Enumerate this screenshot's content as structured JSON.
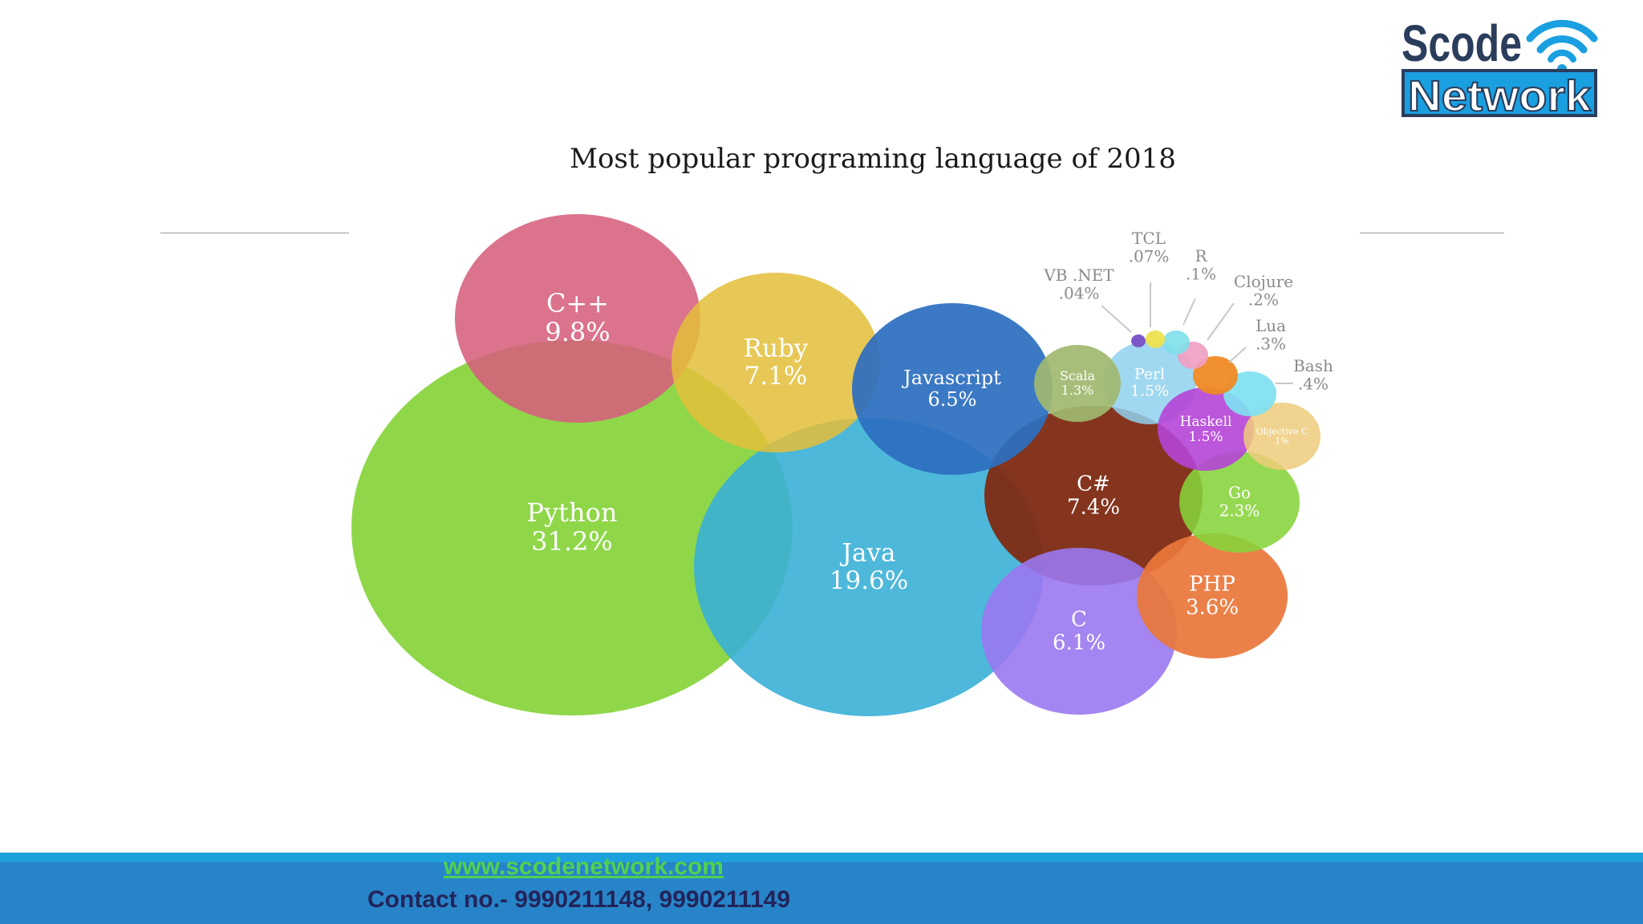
{
  "logo": {
    "line1": "Scode",
    "line2": "Network",
    "icon": "wifi-icon"
  },
  "chart_data": {
    "type": "bubble",
    "title": "Most popular programing language of 2018",
    "units": "%",
    "series": [
      {
        "label": "Python",
        "value": "31.2%",
        "color": "#86d43a"
      },
      {
        "label": "Java",
        "value": "19.6%",
        "color": "#3ab0d6"
      },
      {
        "label": "C++",
        "value": "9.8%",
        "color": "#d6607d"
      },
      {
        "label": "C#",
        "value": "7.4%",
        "color": "#7e2a12"
      },
      {
        "label": "Ruby",
        "value": "7.1%",
        "color": "#e3bf3a"
      },
      {
        "label": "Javascript",
        "value": "6.5%",
        "color": "#2d6fbf"
      },
      {
        "label": "C",
        "value": "6.1%",
        "color": "#9a78ef"
      },
      {
        "label": "PHP",
        "value": "3.6%",
        "color": "#e9773a"
      },
      {
        "label": "Go",
        "value": "2.3%",
        "color": "#86d43a"
      },
      {
        "label": "Perl",
        "value": "1.5%",
        "color": "#8fd0ef"
      },
      {
        "label": "Haskell",
        "value": "1.5%",
        "color": "#b544d6"
      },
      {
        "label": "Scala",
        "value": "1.3%",
        "color": "#9fb86f"
      },
      {
        "label": "Objective C",
        "value": "1%",
        "color": "#edcb7a"
      },
      {
        "label": "Bash",
        "value": ".4%",
        "color": "#7fdff1"
      },
      {
        "label": "Lua",
        "value": ".3%",
        "color": "#ef8a25"
      },
      {
        "label": "Clojure",
        "value": ".2%",
        "color": "#f0a0c2"
      },
      {
        "label": "R",
        "value": ".1%",
        "color": "#7fe0ea"
      },
      {
        "label": "TCL",
        "value": ".07%",
        "color": "#ede24e"
      },
      {
        "label": "VB .NET",
        "value": ".04%",
        "color": "#7a55c8"
      }
    ]
  },
  "footer": {
    "url": "www.scodenetwork.com",
    "contact": "Contact no.- 9990211148, 9990211149"
  }
}
